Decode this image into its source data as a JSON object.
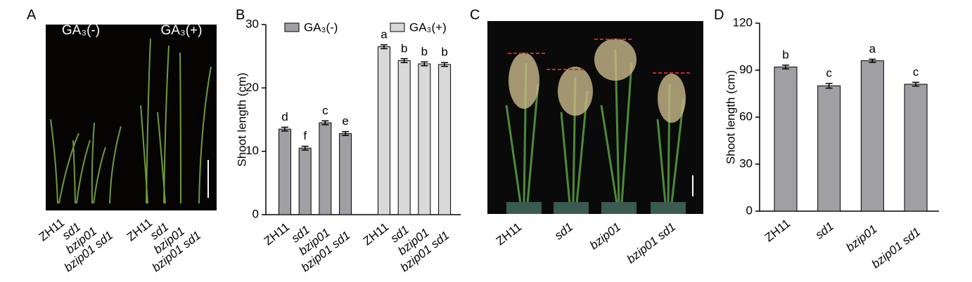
{
  "panels": {
    "a": {
      "label": "A",
      "photo_labels": [
        "GA₃(-)",
        "GA₃(+)"
      ],
      "categories": [
        "ZH11",
        "sd1",
        "bzip01",
        "bzip01 sd1"
      ]
    },
    "c": {
      "label": "C",
      "categories": [
        "ZH11",
        "sd1",
        "bzip01",
        "bzip01 sd1"
      ]
    }
  },
  "chart_data": [
    {
      "type": "bar",
      "label": "B",
      "ylabel": "Shoot length (cm)",
      "categories": [
        "ZH11",
        "sd1",
        "bzip01",
        "bzip01 sd1"
      ],
      "series": [
        {
          "name": "GA₃(-)",
          "color": "#a0a0a4",
          "values": [
            13.5,
            10.5,
            14.5,
            12.8
          ],
          "errors": [
            0.3,
            0.3,
            0.3,
            0.3
          ],
          "letters": [
            "d",
            "f",
            "c",
            "e"
          ]
        },
        {
          "name": "GA₃(+)",
          "color": "#d9d9d9",
          "values": [
            26.5,
            24.3,
            23.8,
            23.7
          ],
          "errors": [
            0.3,
            0.3,
            0.3,
            0.3
          ],
          "letters": [
            "a",
            "b",
            "b",
            "b"
          ]
        }
      ],
      "ylim": [
        0,
        30
      ],
      "yticks": [
        0,
        10,
        20,
        30
      ]
    },
    {
      "type": "bar",
      "label": "D",
      "ylabel": "Shoot length (cm)",
      "categories": [
        "ZH11",
        "sd1",
        "bzip01",
        "bzip01 sd1"
      ],
      "series": [
        {
          "color": "#a0a0a4",
          "values": [
            92,
            80,
            96,
            81
          ],
          "errors": [
            1.2,
            1.5,
            1,
            1.2
          ],
          "letters": [
            "b",
            "c",
            "a",
            "c"
          ]
        }
      ],
      "ylim": [
        0,
        120
      ],
      "yticks": [
        0,
        30,
        60,
        90,
        120
      ]
    }
  ]
}
